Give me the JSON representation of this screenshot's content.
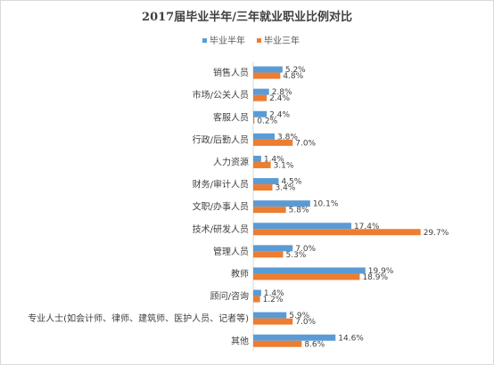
{
  "chart_data": {
    "type": "bar",
    "orientation": "horizontal",
    "title": "2017届毕业半年/三年就业职业比例对比",
    "xlabel": "",
    "ylabel": "",
    "unit": "%",
    "legend_position": "top",
    "grid": false,
    "xlim": [
      0,
      30
    ],
    "categories": [
      "销售人员",
      "市场/公关人员",
      "客服人员",
      "行政/后勤人员",
      "人力资源",
      "财务/审计人员",
      "文职/办事人员",
      "技术/研发人员",
      "管理人员",
      "教师",
      "顾问/咨询",
      "专业人士(如会计师、律师、建筑师、医护人员、记者等)",
      "其他"
    ],
    "series": [
      {
        "name": "毕业半年",
        "color": "#5b9bd5",
        "values": [
          5.2,
          2.8,
          2.4,
          3.8,
          1.4,
          4.5,
          10.1,
          17.4,
          7.0,
          19.9,
          1.4,
          5.9,
          14.6
        ],
        "labels": [
          "5.2%",
          "2.8%",
          "2.4%",
          "3.8%",
          "1.4%",
          "4.5%",
          "10.1%",
          "17.4%",
          "7.0%",
          "19.9%",
          "1.4%",
          "5.9%",
          "14.6%"
        ]
      },
      {
        "name": "毕业三年",
        "color": "#ed7d31",
        "values": [
          4.8,
          2.4,
          0.2,
          7.0,
          3.1,
          3.4,
          5.8,
          29.7,
          5.3,
          18.9,
          1.2,
          7.0,
          8.6
        ],
        "labels": [
          "4.8%",
          "2.4%",
          "0.2%",
          "7.0%",
          "3.1%",
          "3.4%",
          "5.8%",
          "29.7%",
          "5.3%",
          "18.9%",
          "1.2%",
          "7.0%",
          "8.6%"
        ]
      }
    ]
  }
}
